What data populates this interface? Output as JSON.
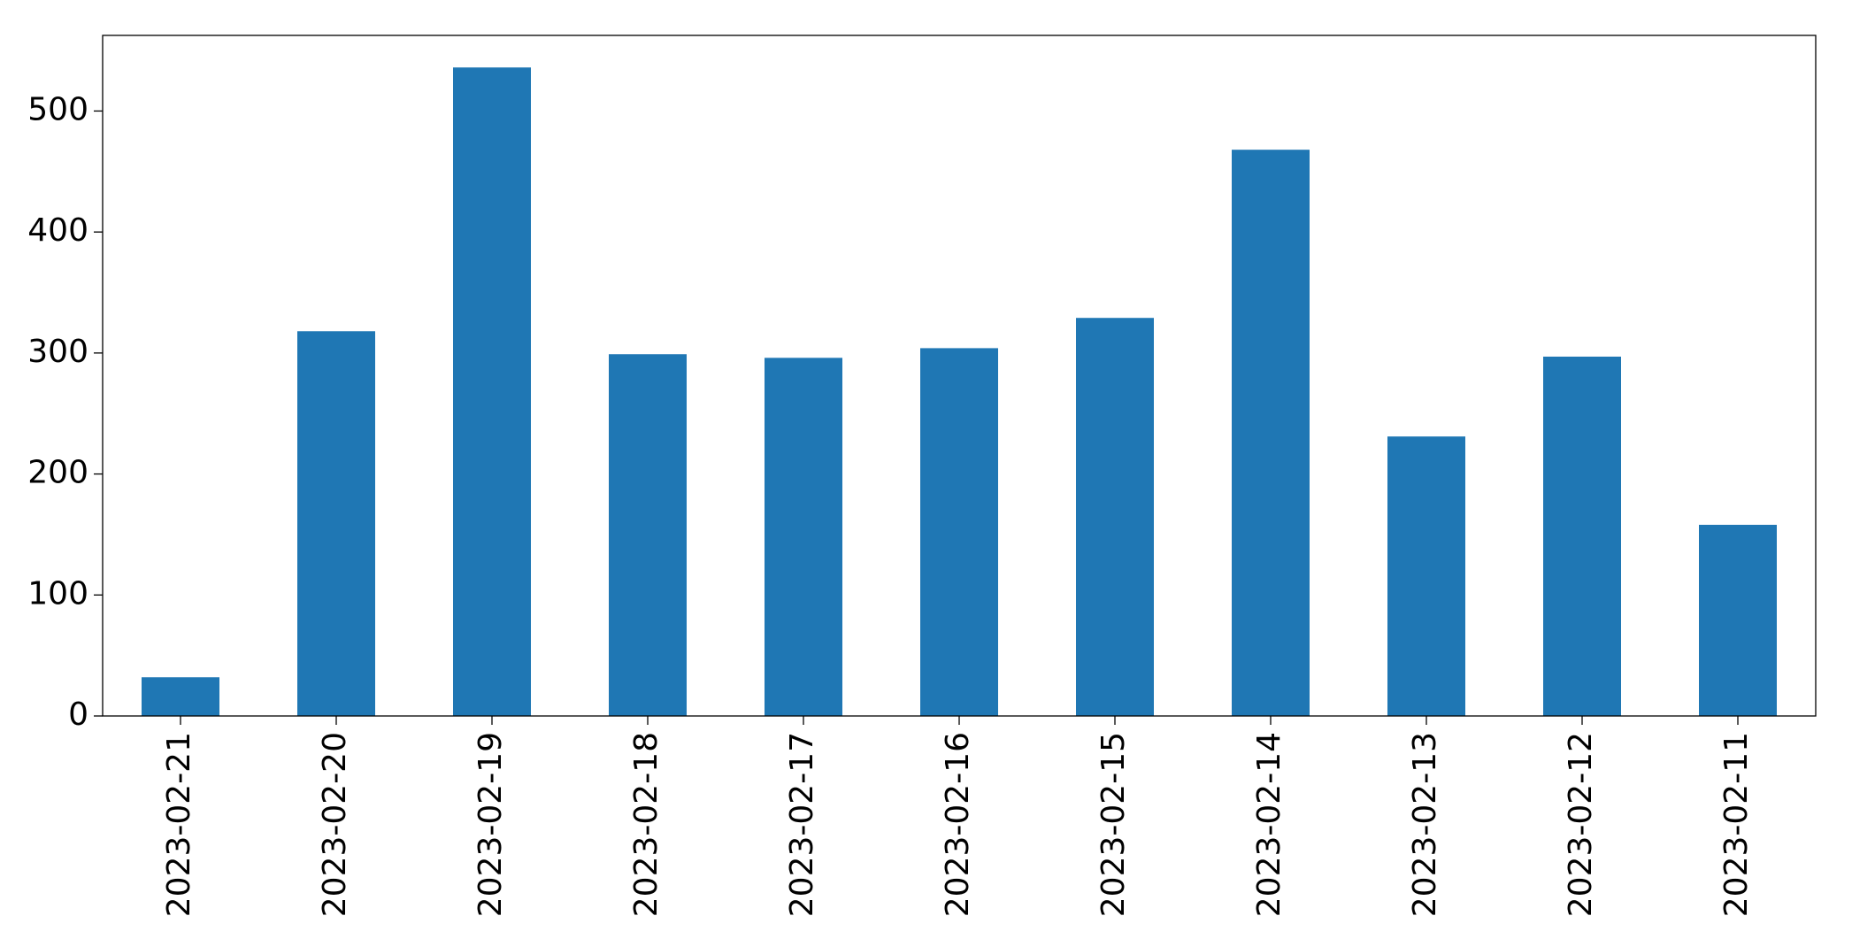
{
  "chart_data": {
    "type": "bar",
    "categories": [
      "2023-02-21",
      "2023-02-20",
      "2023-02-19",
      "2023-02-18",
      "2023-02-17",
      "2023-02-16",
      "2023-02-15",
      "2023-02-14",
      "2023-02-13",
      "2023-02-12",
      "2023-02-11"
    ],
    "values": [
      32,
      318,
      536,
      299,
      296,
      304,
      329,
      468,
      231,
      297,
      158
    ],
    "color": "#1f77b4",
    "ylim": [
      0,
      562.5
    ],
    "yticks": [
      0,
      100,
      200,
      300,
      400,
      500
    ],
    "grid": false
  }
}
